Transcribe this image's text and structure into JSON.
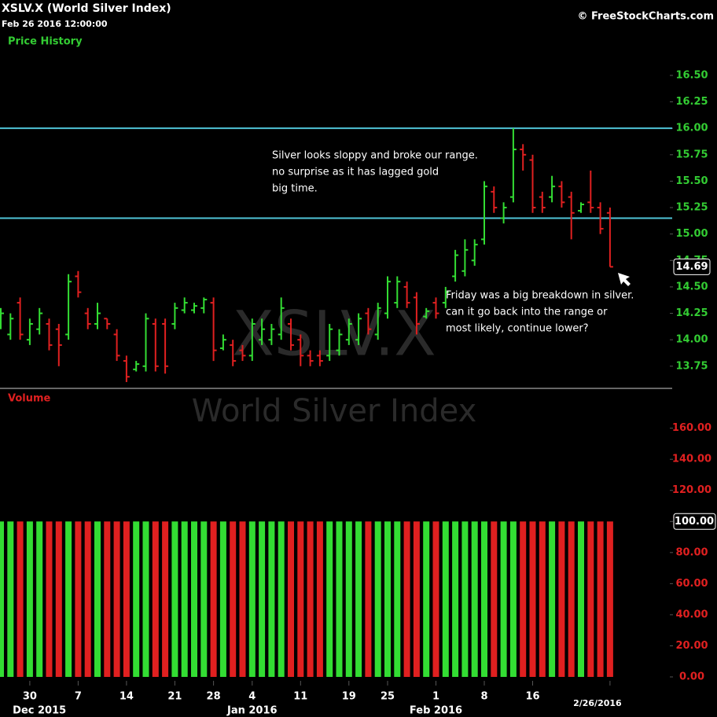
{
  "header": {
    "title": "XSLV.X (World Silver Index)",
    "datetime": "Feb 26 2016 12:00:00",
    "credit": "© FreeStockCharts.com"
  },
  "chart_data": [
    {
      "type": "ohlc",
      "title": "Price History",
      "watermark": "XSLV.X",
      "title_color": "#33cc33",
      "up_color": "#33dd33",
      "down_color": "#e02020",
      "open": [
        14.15,
        14.05,
        14.35,
        14.0,
        14.1,
        14.15,
        14.1,
        14.05,
        14.6,
        14.25,
        14.15,
        14.2,
        14.05,
        13.8,
        13.72,
        13.75,
        14.15,
        14.15,
        14.15,
        14.28,
        14.28,
        14.3,
        14.35,
        13.92,
        13.95,
        13.9,
        13.85,
        14.0,
        14.0,
        14.05,
        14.15,
        14.0,
        13.85,
        13.85,
        13.85,
        13.9,
        14.0,
        14.0,
        14.25,
        14.05,
        14.25,
        14.35,
        14.5,
        14.4,
        14.22,
        14.35,
        14.35,
        14.6,
        14.65,
        14.75,
        14.95,
        15.4,
        15.15,
        15.35,
        15.8,
        15.7,
        15.35,
        15.35,
        15.45,
        15.35,
        15.22,
        15.3,
        15.25,
        15.2
      ],
      "high": [
        14.3,
        14.25,
        14.4,
        14.2,
        14.3,
        14.2,
        14.15,
        14.62,
        14.65,
        14.3,
        14.35,
        14.2,
        14.1,
        13.85,
        13.8,
        14.25,
        14.2,
        14.2,
        14.35,
        14.4,
        14.35,
        14.4,
        14.4,
        14.05,
        14.0,
        13.95,
        14.2,
        14.2,
        14.15,
        14.4,
        14.2,
        14.05,
        13.9,
        13.9,
        14.15,
        14.1,
        14.2,
        14.25,
        14.3,
        14.35,
        14.6,
        14.6,
        14.55,
        14.45,
        14.3,
        14.4,
        14.5,
        14.85,
        14.95,
        14.95,
        15.5,
        15.45,
        15.3,
        16.0,
        15.85,
        15.75,
        15.4,
        15.55,
        15.5,
        15.4,
        15.3,
        15.6,
        15.3,
        15.25
      ],
      "low": [
        14.1,
        14.0,
        14.0,
        13.95,
        14.05,
        13.9,
        13.75,
        14.0,
        14.4,
        14.1,
        14.1,
        14.1,
        13.8,
        13.6,
        13.7,
        13.7,
        13.7,
        13.68,
        14.1,
        14.25,
        14.25,
        14.25,
        13.8,
        13.9,
        13.75,
        13.8,
        13.8,
        13.95,
        13.95,
        14.0,
        13.9,
        13.75,
        13.75,
        13.75,
        13.8,
        13.85,
        13.95,
        13.95,
        14.05,
        14.0,
        14.2,
        14.3,
        14.3,
        14.05,
        14.2,
        14.2,
        14.3,
        14.55,
        14.6,
        14.7,
        14.9,
        15.2,
        15.1,
        15.3,
        15.6,
        15.2,
        15.2,
        15.3,
        15.25,
        14.95,
        15.2,
        15.2,
        15.0,
        14.69
      ],
      "close": [
        14.25,
        14.2,
        14.05,
        14.15,
        14.25,
        13.95,
        13.95,
        14.55,
        14.45,
        14.15,
        14.25,
        14.15,
        13.85,
        13.65,
        13.77,
        14.2,
        13.75,
        13.75,
        14.3,
        14.35,
        14.32,
        14.38,
        13.9,
        14.0,
        13.8,
        13.85,
        14.15,
        14.1,
        14.1,
        14.3,
        13.95,
        13.85,
        13.8,
        13.8,
        14.1,
        14.05,
        14.15,
        14.2,
        14.1,
        14.3,
        14.55,
        14.55,
        14.35,
        14.15,
        14.27,
        14.25,
        14.45,
        14.8,
        14.85,
        14.9,
        15.45,
        15.25,
        15.25,
        15.8,
        15.75,
        15.25,
        15.25,
        15.45,
        15.3,
        15.2,
        15.28,
        15.25,
        15.05,
        14.69
      ],
      "last_price": 14.69,
      "hlines": [
        16.0,
        15.15
      ],
      "hline_color": "#4fc3d6",
      "ylim": [
        13.57,
        16.73
      ],
      "yticks": [
        13.75,
        {
          "value": 14.0,
          "label": "14.00"
        },
        14.25,
        {
          "value": 14.5,
          "label": "14.50"
        },
        14.75,
        {
          "value": 15.0,
          "label": "15.00"
        },
        15.25,
        {
          "value": 15.5,
          "label": "15.50"
        },
        15.75,
        {
          "value": 16.0,
          "label": "16.00"
        },
        16.25,
        {
          "value": 16.5,
          "label": "16.50"
        }
      ],
      "tick_color": "#33cc33",
      "annotations": [
        {
          "lines": [
            "Silver looks sloppy and broke our range.",
            "no surprise as it has lagged gold",
            "big time."
          ]
        },
        {
          "lines": [
            "Friday was a big breakdown in silver.",
            "can it go back into the range or",
            "most likely, continue lower?"
          ]
        }
      ]
    },
    {
      "type": "bar",
      "title": "Volume",
      "watermark": "World Silver Index",
      "title_color": "#e02020",
      "categories": [
        null,
        null,
        null,
        "30",
        null,
        null,
        null,
        null,
        "7",
        null,
        null,
        null,
        null,
        "14",
        null,
        null,
        null,
        null,
        "21",
        null,
        null,
        null,
        "28",
        null,
        null,
        null,
        "4",
        null,
        null,
        null,
        null,
        "11",
        null,
        null,
        null,
        null,
        "19",
        null,
        null,
        null,
        "25",
        null,
        null,
        null,
        null,
        "1",
        null,
        null,
        null,
        null,
        "8",
        null,
        null,
        null,
        null,
        "16",
        null,
        null,
        null,
        null,
        null,
        null,
        null,
        "2/26/2016"
      ],
      "month_categories": [
        null,
        null,
        null,
        null,
        "Dec 2015",
        null,
        null,
        null,
        null,
        null,
        null,
        null,
        null,
        null,
        null,
        null,
        null,
        null,
        null,
        null,
        null,
        null,
        null,
        null,
        null,
        null,
        "Jan 2016",
        null,
        null,
        null,
        null,
        null,
        null,
        null,
        null,
        null,
        null,
        null,
        null,
        null,
        null,
        null,
        null,
        null,
        null,
        "Feb 2016",
        null,
        null,
        null,
        null,
        null,
        null,
        null,
        null,
        null,
        null,
        null,
        null,
        null,
        null,
        null,
        null,
        null,
        null
      ],
      "values": [
        100,
        100,
        100,
        100,
        100,
        100,
        100,
        100,
        100,
        100,
        100,
        100,
        100,
        100,
        100,
        100,
        100,
        100,
        100,
        100,
        100,
        100,
        100,
        100,
        100,
        100,
        100,
        100,
        100,
        100,
        100,
        100,
        100,
        100,
        100,
        100,
        100,
        100,
        100,
        100,
        100,
        100,
        100,
        100,
        100,
        100,
        100,
        100,
        100,
        100,
        100,
        100,
        100,
        100,
        100,
        100,
        100,
        100,
        100,
        100,
        100,
        100,
        100,
        100
      ],
      "value_labels": [
        null,
        null,
        null,
        null,
        null,
        null,
        null,
        null,
        null,
        null,
        null,
        null,
        null,
        null,
        null,
        null,
        null,
        null,
        null,
        null,
        null,
        null,
        null,
        null,
        null,
        null,
        null,
        null,
        null,
        null,
        null,
        null,
        null,
        null,
        null,
        null,
        null,
        null,
        null,
        null,
        null,
        null,
        null,
        null,
        null,
        null,
        null,
        null,
        null,
        null,
        null,
        null,
        null,
        null,
        null,
        null,
        null,
        null,
        null,
        null,
        null,
        null,
        null,
        "100.00"
      ],
      "ylim": [
        0,
        175
      ],
      "yticks": [
        {
          "value": 0,
          "label": "0.00"
        },
        {
          "value": 20,
          "label": "20.00"
        },
        {
          "value": 40,
          "label": "40.00"
        },
        {
          "value": 60,
          "label": "60.00"
        },
        {
          "value": 80,
          "label": "80.00"
        },
        {
          "value": 100,
          "label": "100.00"
        },
        {
          "value": 120,
          "label": "120.00"
        },
        {
          "value": 140,
          "label": "140.00"
        },
        {
          "value": 160,
          "label": "160.00"
        }
      ],
      "tick_color": "#e02020"
    }
  ]
}
